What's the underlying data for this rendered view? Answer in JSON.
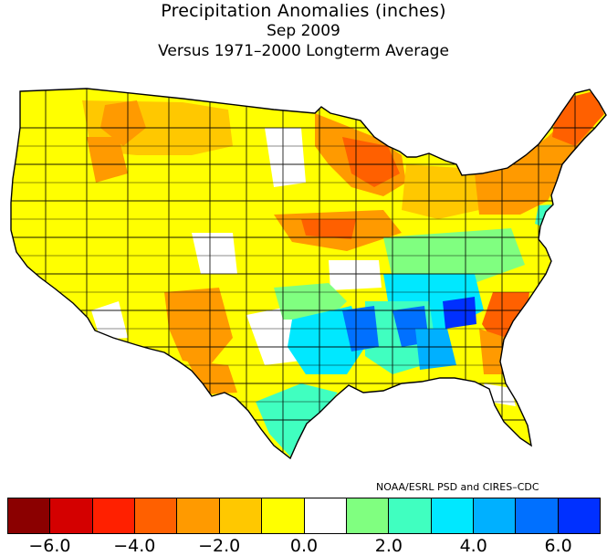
{
  "title": {
    "line1": "Precipitation Anomalies (inches)",
    "line2": "Sep 2009",
    "line3": "Versus 1971–2000 Longterm Average"
  },
  "credit": "NOAA/ESRL PSD and CIRES–CDC",
  "colorbar": {
    "colors": [
      "#8b0000",
      "#d40000",
      "#ff2000",
      "#ff6000",
      "#ff9a00",
      "#ffc800",
      "#ffff00",
      "#ffffff",
      "#80ff80",
      "#40ffc0",
      "#00e8ff",
      "#00b0ff",
      "#0070ff",
      "#0030ff"
    ],
    "ticks": [
      "−6.0",
      "−4.0",
      "−2.0",
      "0.0",
      "2.0",
      "4.0",
      "6.0"
    ]
  },
  "map": {
    "region": "Contiguous United States climate divisions",
    "region_colors": {
      "dry_yellow": "#ffff00",
      "dry_gold": "#ffc800",
      "dry_orange": "#ff9a00",
      "dry_darkorange": "#ff6000",
      "near_normal": "#ffffff",
      "wet_green": "#80ff80",
      "wet_teal": "#40ffc0",
      "wet_cyan": "#00e8ff",
      "wet_sky": "#00b0ff",
      "wet_blue": "#0070ff",
      "wet_deepblue": "#0030ff"
    }
  }
}
